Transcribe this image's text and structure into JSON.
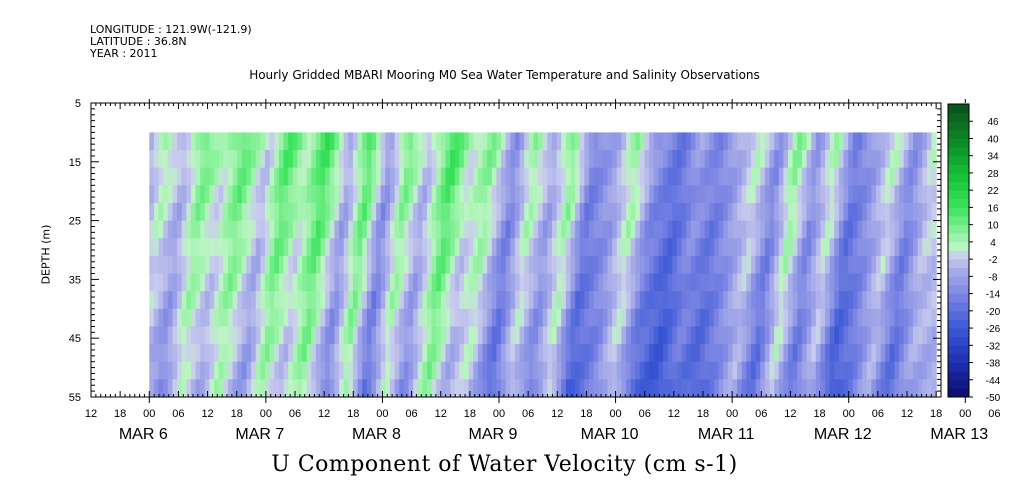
{
  "meta": {
    "longitude": "LONGITUDE : 121.9W(-121.9)",
    "latitude": "LATITUDE : 36.8N",
    "year": "YEAR : 2011"
  },
  "chart_data": {
    "type": "heatmap",
    "title": "Hourly Gridded MBARI Mooring M0 Sea Water Temperature and Salinity Observations",
    "bottom_title": "U Component of Water Velocity (cm s-1)",
    "ylabel": "DEPTH (m)",
    "y_ticks": [
      5,
      15,
      25,
      35,
      45,
      55
    ],
    "ylim": [
      55,
      5
    ],
    "data_depth_range": [
      10,
      55
    ],
    "x_time_range_hours": [
      -12,
      163
    ],
    "x_hour_ticks": [
      "12",
      "18",
      "00",
      "06",
      "12",
      "18",
      "00",
      "06",
      "12",
      "18",
      "00",
      "06",
      "12",
      "18",
      "00",
      "06",
      "12",
      "18",
      "00",
      "06",
      "12",
      "18",
      "00",
      "06",
      "12",
      "18",
      "00",
      "06",
      "12",
      "18",
      "00",
      "06"
    ],
    "x_date_labels": [
      "MAR  6",
      "MAR  7",
      "MAR  8",
      "MAR  9",
      "MAR 10",
      "MAR 11",
      "MAR 12",
      "MAR 13"
    ],
    "colorbar": {
      "labels": [
        "46",
        "40",
        "34",
        "28",
        "22",
        "16",
        "10",
        "4",
        "-2",
        "-8",
        "-14",
        "-20",
        "-26",
        "-32",
        "-38",
        "-44",
        "-50"
      ],
      "range": [
        -50,
        52
      ],
      "step": 3
    },
    "column_pattern": [
      {
        "t": 0,
        "v": -8
      },
      {
        "t": 4,
        "v": 6
      },
      {
        "t": 8,
        "v": -4
      },
      {
        "t": 12,
        "v": 12
      },
      {
        "t": 16,
        "v": 2
      },
      {
        "t": 20,
        "v": 14
      },
      {
        "t": 25,
        "v": -2
      },
      {
        "t": 29,
        "v": 16
      },
      {
        "t": 33,
        "v": 4
      },
      {
        "t": 37,
        "v": 18
      },
      {
        "t": 42,
        "v": -6
      },
      {
        "t": 46,
        "v": 16
      },
      {
        "t": 50,
        "v": -10
      },
      {
        "t": 54,
        "v": 12
      },
      {
        "t": 58,
        "v": -4
      },
      {
        "t": 63,
        "v": 18
      },
      {
        "t": 67,
        "v": 2
      },
      {
        "t": 71,
        "v": 10
      },
      {
        "t": 76,
        "v": -12
      },
      {
        "t": 80,
        "v": 8
      },
      {
        "t": 84,
        "v": -6
      },
      {
        "t": 88,
        "v": 10
      },
      {
        "t": 92,
        "v": -14
      },
      {
        "t": 97,
        "v": -6
      },
      {
        "t": 101,
        "v": 8
      },
      {
        "t": 105,
        "v": -10
      },
      {
        "t": 110,
        "v": -18
      },
      {
        "t": 114,
        "v": -8
      },
      {
        "t": 118,
        "v": -14
      },
      {
        "t": 122,
        "v": -6
      },
      {
        "t": 126,
        "v": 4
      },
      {
        "t": 130,
        "v": -12
      },
      {
        "t": 134,
        "v": 10
      },
      {
        "t": 138,
        "v": -10
      },
      {
        "t": 142,
        "v": 6
      },
      {
        "t": 146,
        "v": -16
      },
      {
        "t": 150,
        "v": -8
      },
      {
        "t": 154,
        "v": 4
      },
      {
        "t": 158,
        "v": -12
      },
      {
        "t": 162,
        "v": 2
      }
    ]
  }
}
